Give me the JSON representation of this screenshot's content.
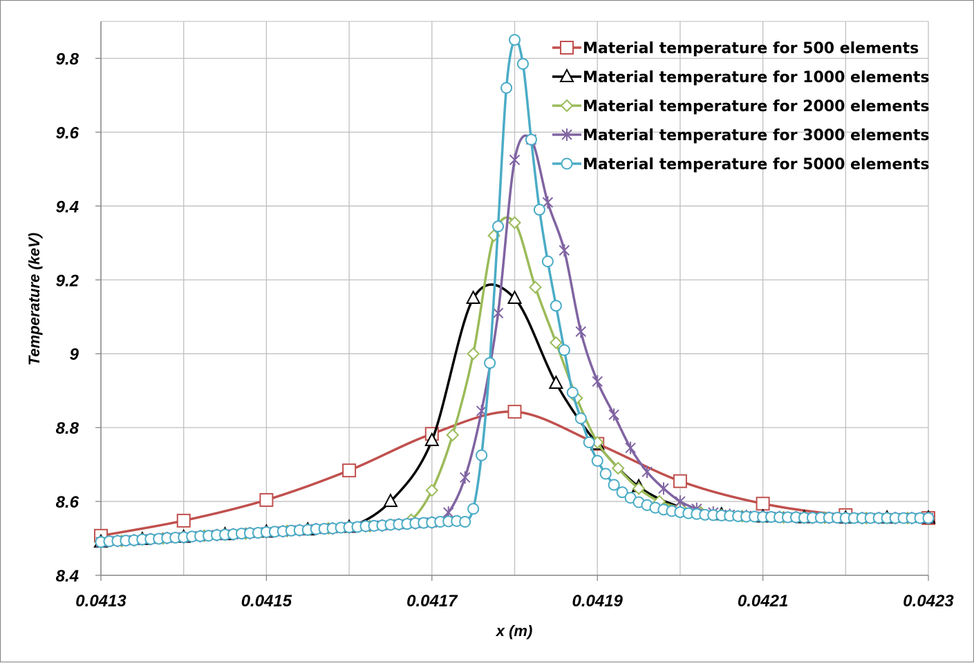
{
  "chart_data": {
    "type": "line",
    "title": "",
    "xlabel": "x (m)",
    "ylabel": "Temperature (keV)",
    "xlim": [
      0.0413,
      0.0423
    ],
    "ylim": [
      8.4,
      9.9
    ],
    "x_ticks": [
      "0.0413",
      "0.0415",
      "0.0417",
      "0.0419",
      "0.0421",
      "0.0423"
    ],
    "y_ticks": [
      "8.4",
      "8.6",
      "8.8",
      "9",
      "9.2",
      "9.4",
      "9.6",
      "9.8"
    ],
    "grid": true,
    "legend_position": "top-right",
    "series": [
      {
        "name": "Material temperature for 500 elements",
        "color": "#c0504d",
        "marker": "square",
        "points": [
          [
            0.0413,
            8.507
          ],
          [
            0.0414,
            8.548
          ],
          [
            0.0415,
            8.604
          ],
          [
            0.0416,
            8.684
          ],
          [
            0.0417,
            8.783
          ],
          [
            0.0418,
            8.843
          ],
          [
            0.0419,
            8.756
          ],
          [
            0.042,
            8.655
          ],
          [
            0.0421,
            8.594
          ],
          [
            0.0422,
            8.563
          ],
          [
            0.0423,
            8.555
          ]
        ]
      },
      {
        "name": "Material temperature for 1000 elements",
        "color": "#000000",
        "marker": "triangle",
        "points": [
          [
            0.0413,
            8.49
          ],
          [
            0.04135,
            8.497
          ],
          [
            0.0414,
            8.503
          ],
          [
            0.04145,
            8.51
          ],
          [
            0.0415,
            8.517
          ],
          [
            0.04155,
            8.523
          ],
          [
            0.0416,
            8.53
          ],
          [
            0.04165,
            8.6
          ],
          [
            0.0417,
            8.765
          ],
          [
            0.04175,
            9.15
          ],
          [
            0.0418,
            9.15
          ],
          [
            0.04185,
            8.92
          ],
          [
            0.0419,
            8.755
          ],
          [
            0.04195,
            8.64
          ],
          [
            0.042,
            8.585
          ],
          [
            0.04205,
            8.564
          ],
          [
            0.0421,
            8.558
          ],
          [
            0.04215,
            8.556
          ],
          [
            0.0422,
            8.555
          ],
          [
            0.04225,
            8.555
          ],
          [
            0.0423,
            8.555
          ]
        ]
      },
      {
        "name": "Material temperature for 2000 elements",
        "color": "#9bbb59",
        "marker": "diamond",
        "points": [
          [
            0.0413,
            8.49
          ],
          [
            0.041325,
            8.493
          ],
          [
            0.04135,
            8.497
          ],
          [
            0.041375,
            8.5
          ],
          [
            0.0414,
            8.503
          ],
          [
            0.041425,
            8.507
          ],
          [
            0.04145,
            8.51
          ],
          [
            0.041475,
            8.513
          ],
          [
            0.0415,
            8.517
          ],
          [
            0.041525,
            8.52
          ],
          [
            0.04155,
            8.523
          ],
          [
            0.041575,
            8.527
          ],
          [
            0.0416,
            8.53
          ],
          [
            0.041625,
            8.533
          ],
          [
            0.04165,
            8.537
          ],
          [
            0.041675,
            8.55
          ],
          [
            0.0417,
            8.63
          ],
          [
            0.041725,
            8.78
          ],
          [
            0.04175,
            9.0
          ],
          [
            0.041775,
            9.32
          ],
          [
            0.0418,
            9.355
          ],
          [
            0.041825,
            9.18
          ],
          [
            0.04185,
            9.03
          ],
          [
            0.041875,
            8.88
          ],
          [
            0.0419,
            8.76
          ],
          [
            0.041925,
            8.69
          ],
          [
            0.04195,
            8.635
          ],
          [
            0.041975,
            8.6
          ],
          [
            0.042,
            8.583
          ],
          [
            0.042025,
            8.57
          ],
          [
            0.04205,
            8.563
          ],
          [
            0.042075,
            8.56
          ],
          [
            0.0421,
            8.558
          ],
          [
            0.042125,
            8.557
          ],
          [
            0.04215,
            8.556
          ],
          [
            0.042175,
            8.556
          ],
          [
            0.0422,
            8.555
          ],
          [
            0.042225,
            8.555
          ],
          [
            0.04225,
            8.555
          ],
          [
            0.042275,
            8.555
          ],
          [
            0.0423,
            8.555
          ]
        ]
      },
      {
        "name": "Material temperature for 3000 elements",
        "color": "#8064a2",
        "marker": "asterisk",
        "points": [
          [
            0.0413,
            8.49
          ],
          [
            0.04132,
            8.493
          ],
          [
            0.04134,
            8.495
          ],
          [
            0.04136,
            8.498
          ],
          [
            0.04138,
            8.501
          ],
          [
            0.0414,
            8.503
          ],
          [
            0.04142,
            8.506
          ],
          [
            0.04144,
            8.509
          ],
          [
            0.04146,
            8.511
          ],
          [
            0.04148,
            8.514
          ],
          [
            0.0415,
            8.517
          ],
          [
            0.04152,
            8.519
          ],
          [
            0.04154,
            8.522
          ],
          [
            0.04156,
            8.525
          ],
          [
            0.04158,
            8.527
          ],
          [
            0.0416,
            8.53
          ],
          [
            0.04162,
            8.533
          ],
          [
            0.04164,
            8.535
          ],
          [
            0.04166,
            8.538
          ],
          [
            0.04168,
            8.541
          ],
          [
            0.0417,
            8.543
          ],
          [
            0.04172,
            8.57
          ],
          [
            0.04174,
            8.665
          ],
          [
            0.04176,
            8.845
          ],
          [
            0.04178,
            9.11
          ],
          [
            0.0418,
            9.525
          ],
          [
            0.04182,
            9.58
          ],
          [
            0.04184,
            9.41
          ],
          [
            0.04186,
            9.28
          ],
          [
            0.04188,
            9.06
          ],
          [
            0.0419,
            8.925
          ],
          [
            0.04192,
            8.835
          ],
          [
            0.04194,
            8.745
          ],
          [
            0.04196,
            8.68
          ],
          [
            0.04198,
            8.635
          ],
          [
            0.042,
            8.6
          ],
          [
            0.04202,
            8.58
          ],
          [
            0.04204,
            8.57
          ],
          [
            0.04206,
            8.564
          ],
          [
            0.04208,
            8.561
          ],
          [
            0.0421,
            8.559
          ],
          [
            0.04212,
            8.558
          ],
          [
            0.04214,
            8.557
          ],
          [
            0.04216,
            8.556
          ],
          [
            0.04218,
            8.556
          ],
          [
            0.0422,
            8.555
          ],
          [
            0.04222,
            8.555
          ],
          [
            0.04224,
            8.555
          ],
          [
            0.04226,
            8.555
          ],
          [
            0.04228,
            8.555
          ],
          [
            0.0423,
            8.555
          ]
        ]
      },
      {
        "name": "Material temperature for 5000 elements",
        "color": "#4bacc6",
        "marker": "circle",
        "points": [
          [
            0.0413,
            8.49
          ],
          [
            0.04131,
            8.492
          ],
          [
            0.04132,
            8.493
          ],
          [
            0.04133,
            8.494
          ],
          [
            0.04134,
            8.495
          ],
          [
            0.04135,
            8.497
          ],
          [
            0.04136,
            8.498
          ],
          [
            0.04137,
            8.499
          ],
          [
            0.04138,
            8.501
          ],
          [
            0.04139,
            8.502
          ],
          [
            0.0414,
            8.503
          ],
          [
            0.04141,
            8.505
          ],
          [
            0.04142,
            8.506
          ],
          [
            0.04143,
            8.507
          ],
          [
            0.04144,
            8.509
          ],
          [
            0.04145,
            8.51
          ],
          [
            0.04146,
            8.511
          ],
          [
            0.04147,
            8.513
          ],
          [
            0.04148,
            8.514
          ],
          [
            0.04149,
            8.515
          ],
          [
            0.0415,
            8.517
          ],
          [
            0.04151,
            8.518
          ],
          [
            0.04152,
            8.519
          ],
          [
            0.04153,
            8.521
          ],
          [
            0.04154,
            8.522
          ],
          [
            0.04155,
            8.523
          ],
          [
            0.04156,
            8.525
          ],
          [
            0.04157,
            8.526
          ],
          [
            0.04158,
            8.527
          ],
          [
            0.04159,
            8.529
          ],
          [
            0.0416,
            8.53
          ],
          [
            0.04161,
            8.531
          ],
          [
            0.04162,
            8.533
          ],
          [
            0.04163,
            8.534
          ],
          [
            0.04164,
            8.535
          ],
          [
            0.04165,
            8.537
          ],
          [
            0.04166,
            8.538
          ],
          [
            0.04167,
            8.539
          ],
          [
            0.04168,
            8.541
          ],
          [
            0.04169,
            8.542
          ],
          [
            0.0417,
            8.543
          ],
          [
            0.04171,
            8.545
          ],
          [
            0.04172,
            8.546
          ],
          [
            0.04173,
            8.547
          ],
          [
            0.04174,
            8.545
          ],
          [
            0.04175,
            8.58
          ],
          [
            0.04176,
            8.725
          ],
          [
            0.04177,
            8.975
          ],
          [
            0.04178,
            9.345
          ],
          [
            0.04179,
            9.72
          ],
          [
            0.0418,
            9.85
          ],
          [
            0.04181,
            9.785
          ],
          [
            0.04182,
            9.58
          ],
          [
            0.04183,
            9.39
          ],
          [
            0.04184,
            9.25
          ],
          [
            0.04185,
            9.13
          ],
          [
            0.04186,
            9.01
          ],
          [
            0.04187,
            8.895
          ],
          [
            0.04188,
            8.825
          ],
          [
            0.04189,
            8.76
          ],
          [
            0.0419,
            8.71
          ],
          [
            0.04191,
            8.675
          ],
          [
            0.04192,
            8.645
          ],
          [
            0.04193,
            8.625
          ],
          [
            0.04194,
            8.61
          ],
          [
            0.04195,
            8.598
          ],
          [
            0.04196,
            8.59
          ],
          [
            0.04197,
            8.583
          ],
          [
            0.04198,
            8.578
          ],
          [
            0.04199,
            8.574
          ],
          [
            0.042,
            8.571
          ],
          [
            0.04201,
            8.568
          ],
          [
            0.04202,
            8.566
          ],
          [
            0.04203,
            8.564
          ],
          [
            0.04204,
            8.563
          ],
          [
            0.04205,
            8.562
          ],
          [
            0.04206,
            8.561
          ],
          [
            0.04207,
            8.56
          ],
          [
            0.04208,
            8.559
          ],
          [
            0.04209,
            8.559
          ],
          [
            0.0421,
            8.558
          ],
          [
            0.04211,
            8.558
          ],
          [
            0.04212,
            8.557
          ],
          [
            0.04213,
            8.557
          ],
          [
            0.04214,
            8.557
          ],
          [
            0.04215,
            8.556
          ],
          [
            0.04216,
            8.556
          ],
          [
            0.04217,
            8.556
          ],
          [
            0.04218,
            8.556
          ],
          [
            0.04219,
            8.556
          ],
          [
            0.0422,
            8.555
          ],
          [
            0.04221,
            8.555
          ],
          [
            0.04222,
            8.555
          ],
          [
            0.04223,
            8.555
          ],
          [
            0.04224,
            8.555
          ],
          [
            0.04225,
            8.555
          ],
          [
            0.04226,
            8.555
          ],
          [
            0.04227,
            8.555
          ],
          [
            0.04228,
            8.555
          ],
          [
            0.04229,
            8.555
          ],
          [
            0.0423,
            8.555
          ]
        ]
      }
    ]
  }
}
